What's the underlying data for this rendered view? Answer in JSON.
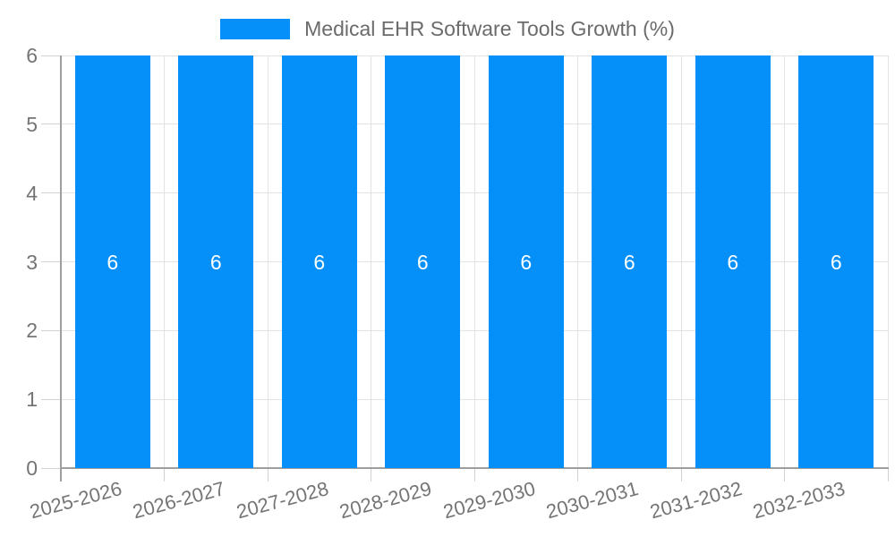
{
  "chart": {
    "legend": {
      "label": "Medical EHR Software Tools Growth (%)"
    },
    "colors": {
      "bar": "#0590f9",
      "grid": "#e3e3e6",
      "tick": "#d2d2d6",
      "axis_line": "#9e9e9e",
      "axis_text": "#757575",
      "legend_text": "#6b6b6b",
      "bar_label": "#ffffff",
      "background": "#ffffff"
    }
  },
  "chart_data": {
    "type": "bar",
    "title": "Medical EHR Software Tools Growth (%)",
    "categories": [
      "2025-2026",
      "2026-2027",
      "2027-2028",
      "2028-2029",
      "2029-2030",
      "2030-2031",
      "2031-2032",
      "2032-2033"
    ],
    "series": [
      {
        "name": "Medical EHR Software Tools Growth (%)",
        "values": [
          6,
          6,
          6,
          6,
          6,
          6,
          6,
          6
        ]
      }
    ],
    "values": [
      6,
      6,
      6,
      6,
      6,
      6,
      6,
      6
    ],
    "bar_value_labels": [
      "6",
      "6",
      "6",
      "6",
      "6",
      "6",
      "6",
      "6"
    ],
    "xlabel": "",
    "ylabel": "",
    "ylim": [
      0,
      6
    ],
    "yticks": [
      0,
      1,
      2,
      3,
      4,
      5,
      6
    ],
    "grid": true,
    "legend_position": "top-center",
    "x_label_rotation_deg": -15
  }
}
